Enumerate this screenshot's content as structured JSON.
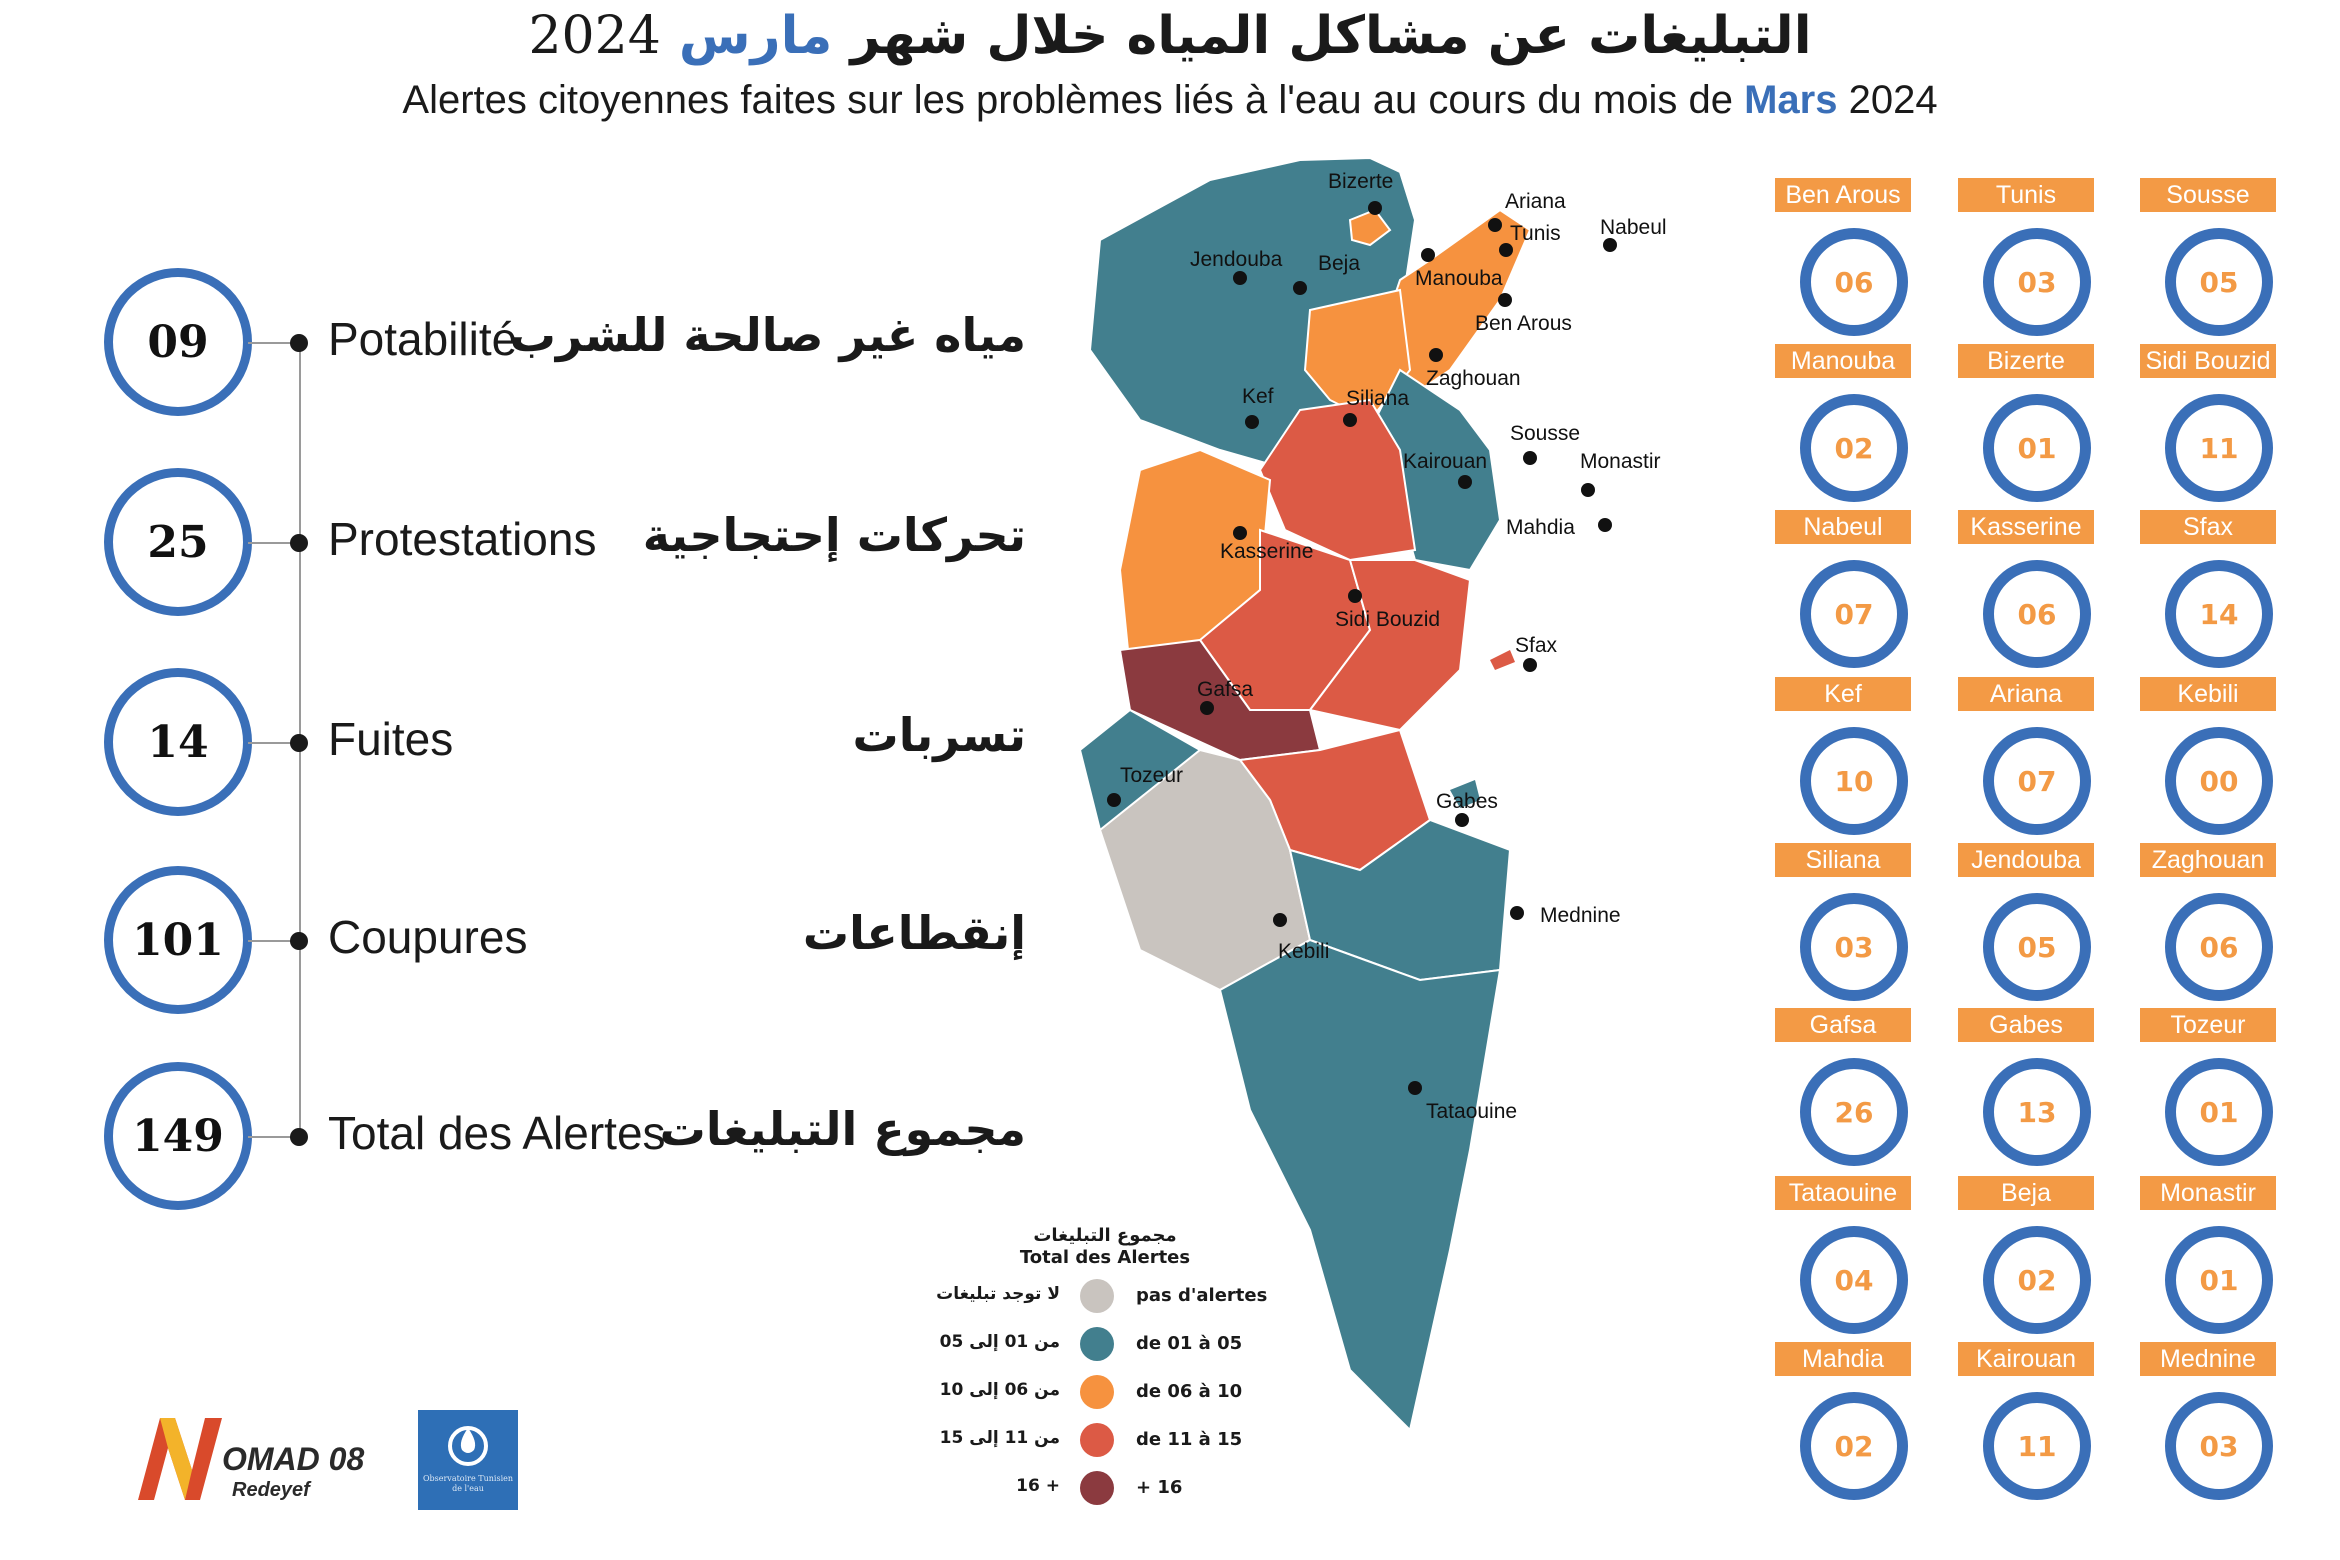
{
  "header": {
    "title_ar_main": "التبليغات عن مشاكل المياه خلال شهر",
    "title_ar_month": "مارس",
    "title_ar_year": "2024",
    "title_fr_main": "Alertes citoyennes faites sur les problèmes liés à l'eau au cours du mois de",
    "title_fr_month": "Mars",
    "title_fr_year": "2024"
  },
  "stats": [
    {
      "value": "09",
      "label_fr": "Potabilité",
      "label_ar": "مياه غير صالحة للشرب"
    },
    {
      "value": "25",
      "label_fr": "Protestations",
      "label_ar": "تحركات إحتجاجية"
    },
    {
      "value": "14",
      "label_fr": "Fuites",
      "label_ar": "تسربات"
    },
    {
      "value": "101",
      "label_fr": "Coupures",
      "label_ar": "إنقطاعات"
    },
    {
      "value": "149",
      "label_fr": "Total des Alertes",
      "label_ar": "مجموع التبليغات"
    }
  ],
  "map": {
    "places": [
      {
        "name": "Bizerte"
      },
      {
        "name": "Ariana"
      },
      {
        "name": "Tunis"
      },
      {
        "name": "Nabeul"
      },
      {
        "name": "Jendouba"
      },
      {
        "name": "Beja"
      },
      {
        "name": "Manouba"
      },
      {
        "name": "Ben Arous"
      },
      {
        "name": "Zaghouan"
      },
      {
        "name": "Kef"
      },
      {
        "name": "Siliana"
      },
      {
        "name": "Sousse"
      },
      {
        "name": "Kairouan"
      },
      {
        "name": "Monastir"
      },
      {
        "name": "Mahdia"
      },
      {
        "name": "Kasserine"
      },
      {
        "name": "Sidi Bouzid"
      },
      {
        "name": "Sfax"
      },
      {
        "name": "Gafsa"
      },
      {
        "name": "Tozeur"
      },
      {
        "name": "Gabes"
      },
      {
        "name": "Mednine"
      },
      {
        "name": "Kebili"
      },
      {
        "name": "Tataouine"
      }
    ],
    "colors": {
      "none": "#c9c4bf",
      "range_01_05": "#427f8e",
      "range_06_10": "#f6923f",
      "range_11_15": "#dc5a45",
      "range_16_plus": "#8b3a3f",
      "accent": "#3a6fb8"
    }
  },
  "legend": {
    "title_ar": "مجموع التبليغات",
    "title_fr": "Total des Alertes",
    "items": [
      {
        "fr": "pas d'alertes",
        "ar": "لا توجد تبليغات",
        "color": "#c9c4bf"
      },
      {
        "fr": "de 01 à 05",
        "ar": "من 01 إلى 05",
        "color": "#427f8e"
      },
      {
        "fr": "de 06 à 10",
        "ar": "من 06 إلى 10",
        "color": "#f6923f"
      },
      {
        "fr": "de 11 à 15",
        "ar": "من 11 إلى 15",
        "color": "#dc5a45"
      },
      {
        "fr": "+ 16",
        "ar": "+ 16",
        "color": "#8b3a3f"
      }
    ]
  },
  "governorates": [
    {
      "name": "Ben Arous",
      "value": "06"
    },
    {
      "name": "Tunis",
      "value": "03"
    },
    {
      "name": "Sousse",
      "value": "05"
    },
    {
      "name": "Manouba",
      "value": "02"
    },
    {
      "name": "Bizerte",
      "value": "01"
    },
    {
      "name": "Sidi Bouzid",
      "value": "11"
    },
    {
      "name": "Nabeul",
      "value": "07"
    },
    {
      "name": "Kasserine",
      "value": "06"
    },
    {
      "name": "Sfax",
      "value": "14"
    },
    {
      "name": "Kef",
      "value": "10"
    },
    {
      "name": "Ariana",
      "value": "07"
    },
    {
      "name": "Kebili",
      "value": "00"
    },
    {
      "name": "Siliana",
      "value": "03"
    },
    {
      "name": "Jendouba",
      "value": "05"
    },
    {
      "name": "Zaghouan",
      "value": "06"
    },
    {
      "name": "Gafsa",
      "value": "26"
    },
    {
      "name": "Gabes",
      "value": "13"
    },
    {
      "name": "Tozeur",
      "value": "01"
    },
    {
      "name": "Tataouine",
      "value": "04"
    },
    {
      "name": "Beja",
      "value": "02"
    },
    {
      "name": "Monastir",
      "value": "01"
    },
    {
      "name": "Mahdia",
      "value": "02"
    },
    {
      "name": "Kairouan",
      "value": "11"
    },
    {
      "name": "Mednine",
      "value": "03"
    }
  ],
  "logos": {
    "nomad_text": "OMAD 08",
    "nomad_sub": "Redeyef",
    "observatory_text": "Observatoire Tunisien de l'eau"
  }
}
